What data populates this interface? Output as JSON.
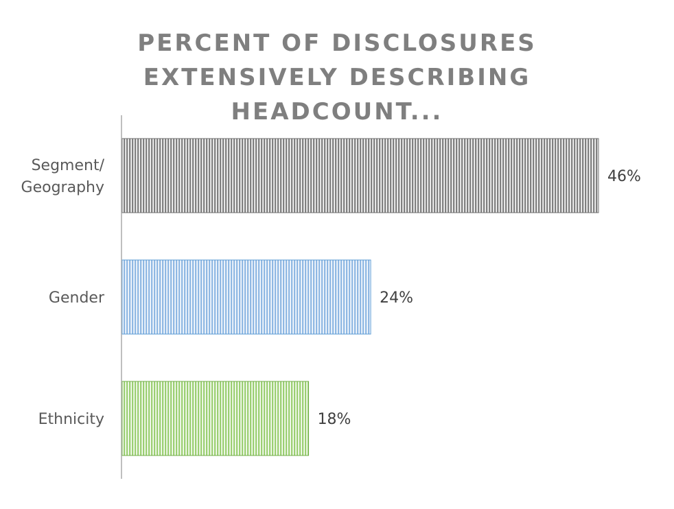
{
  "chart_data": {
    "type": "bar",
    "orientation": "horizontal",
    "title_lines": [
      "PERCENT OF DISCLOSURES",
      "EXTENSIVELY DESCRIBING",
      "HEADCOUNT..."
    ],
    "categories": [
      [
        "Segment/",
        "Geography"
      ],
      [
        "Gender"
      ],
      [
        "Ethnicity"
      ]
    ],
    "values": [
      46,
      24,
      18
    ],
    "value_labels": [
      "46%",
      "24%",
      "18%"
    ],
    "colors": [
      "#808080",
      "#8fb8e3",
      "#9bcf72"
    ],
    "stroke_colors": [
      "#6e6e6e",
      "#5b9bd5",
      "#70ad47"
    ],
    "xlim": [
      0,
      50
    ],
    "grid": false,
    "legend": "none"
  }
}
